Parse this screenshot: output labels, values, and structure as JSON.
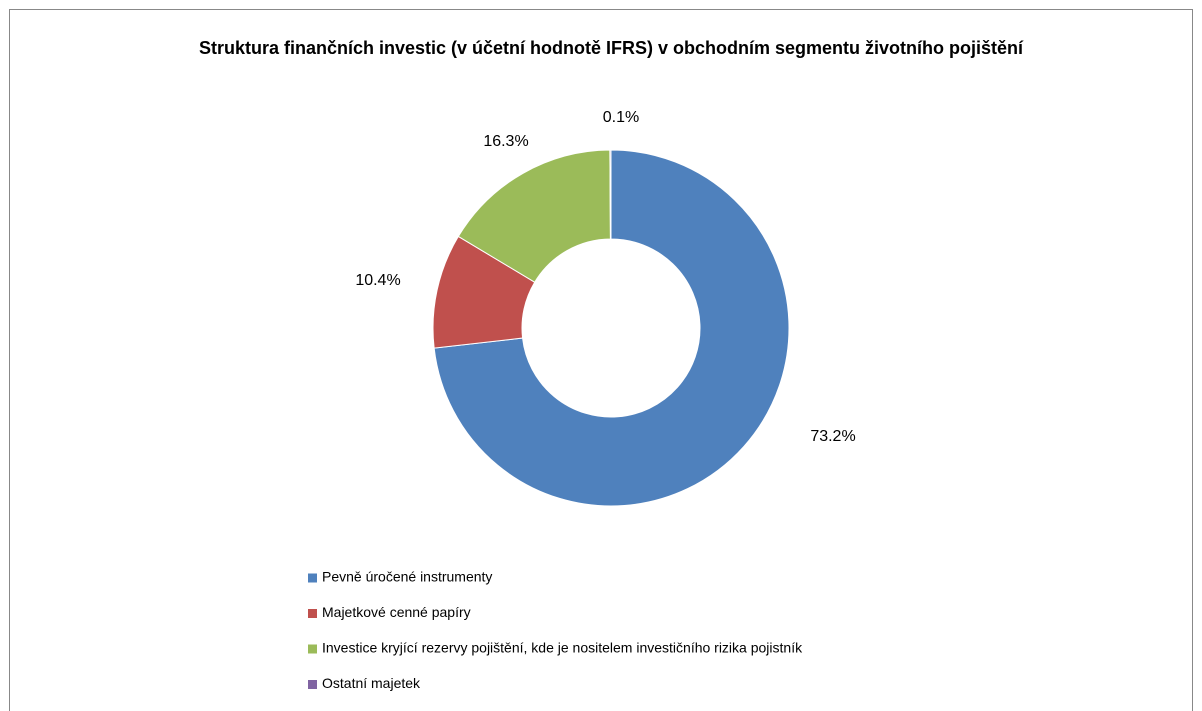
{
  "chart_data": {
    "type": "donut",
    "title": "Struktura finančních investic (v účetní hodnotě IFRS) v obchodním segmentu životního pojištění",
    "categories": [
      "Pevně úročené instrumenty",
      "Majetkové cenné papíry",
      "Investice kryjící rezervy pojištění, kde je nositelem investičního rizika pojistník",
      "Ostatní majetek"
    ],
    "values": [
      73.2,
      10.4,
      16.3,
      0.1
    ],
    "value_labels": [
      "73.2%",
      "10.4%",
      "16.3%",
      "0.1%"
    ],
    "colors": [
      "#4f81bd",
      "#c0504d",
      "#9bbb59",
      "#8064a2"
    ],
    "legend": "bottom"
  }
}
